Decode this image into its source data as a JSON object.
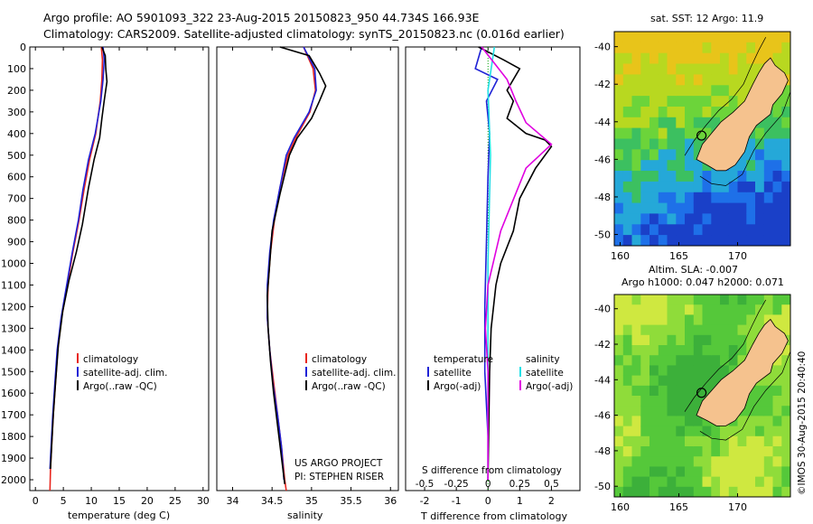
{
  "header": {
    "line1": "Argo profile: AO 5901093_322 23-Aug-2015 20150823_950 44.734S 166.93E",
    "line2": "Climatology: CARS2009. Satellite-adjusted climatology: synTS_20150823.nc (0.016d earlier)"
  },
  "watermark": "©IMOS 30-Aug-2015 20:40:40",
  "colors": {
    "climatology": "#e8261e",
    "satellite": "#1f22d6",
    "argo": "#000000",
    "sat_salinity": "#22e0e6",
    "argo_salinity": "#e000e0",
    "land": "#f5c28e"
  },
  "chart_data": [
    {
      "type": "line",
      "id": "temperature",
      "xlabel": "temperature (deg C)",
      "ylabel": "",
      "xlim": [
        -1,
        31
      ],
      "ylim": [
        0,
        2050
      ],
      "xticks": [
        0,
        5,
        10,
        15,
        20,
        25,
        30
      ],
      "yticks": [
        0,
        100,
        200,
        300,
        400,
        500,
        600,
        700,
        800,
        900,
        1000,
        1100,
        1200,
        1300,
        1400,
        1500,
        1600,
        1700,
        1800,
        1900,
        2000
      ],
      "legend": [
        "climatology",
        "satellite-adj. clim.",
        "Argo(..raw -QC)"
      ],
      "series": [
        {
          "name": "climatology",
          "color": "#e8261e",
          "points": [
            [
              11.8,
              0
            ],
            [
              12.0,
              60
            ],
            [
              11.9,
              150
            ],
            [
              11.6,
              250
            ],
            [
              10.8,
              400
            ],
            [
              9.7,
              520
            ],
            [
              8.7,
              660
            ],
            [
              7.8,
              800
            ],
            [
              6.7,
              950
            ],
            [
              5.7,
              1100
            ],
            [
              4.7,
              1250
            ],
            [
              4.0,
              1400
            ],
            [
              3.6,
              1550
            ],
            [
              3.2,
              1700
            ],
            [
              2.9,
              1850
            ],
            [
              2.7,
              1950
            ],
            [
              2.6,
              2050
            ]
          ]
        },
        {
          "name": "satellite-adj. clim.",
          "color": "#1f22d6",
          "points": [
            [
              12.1,
              0
            ],
            [
              12.3,
              60
            ],
            [
              12.1,
              150
            ],
            [
              11.7,
              250
            ],
            [
              10.7,
              400
            ],
            [
              9.5,
              520
            ],
            [
              8.5,
              660
            ],
            [
              7.7,
              800
            ],
            [
              6.6,
              950
            ],
            [
              5.6,
              1100
            ],
            [
              4.6,
              1250
            ],
            [
              3.9,
              1400
            ],
            [
              3.5,
              1550
            ],
            [
              3.1,
              1700
            ],
            [
              2.8,
              1850
            ],
            [
              2.6,
              1950
            ]
          ]
        },
        {
          "name": "Argo(..raw -QC)",
          "color": "#000000",
          "points": [
            [
              11.9,
              0
            ],
            [
              12.5,
              40
            ],
            [
              12.6,
              100
            ],
            [
              12.8,
              160
            ],
            [
              12.3,
              250
            ],
            [
              11.9,
              330
            ],
            [
              11.5,
              420
            ],
            [
              10.5,
              520
            ],
            [
              9.5,
              650
            ],
            [
              8.4,
              820
            ],
            [
              7.3,
              950
            ],
            [
              6.0,
              1080
            ],
            [
              4.9,
              1220
            ],
            [
              4.1,
              1380
            ],
            [
              3.6,
              1550
            ],
            [
              3.2,
              1700
            ],
            [
              2.9,
              1850
            ],
            [
              2.7,
              1950
            ]
          ]
        }
      ]
    },
    {
      "type": "line",
      "id": "salinity",
      "xlabel": "salinity",
      "ylabel": "",
      "xlim": [
        33.8,
        36.1
      ],
      "ylim": [
        0,
        2050
      ],
      "xticks": [
        34,
        34.5,
        35,
        35.5,
        36
      ],
      "legend": [
        "climatology",
        "satellite-adj. clim.",
        "Argo(..raw -QC)"
      ],
      "annotations": [
        "US ARGO PROJECT",
        "PI: STEPHEN RISER"
      ],
      "series": [
        {
          "name": "climatology",
          "color": "#e8261e",
          "points": [
            [
              34.9,
              0
            ],
            [
              35.02,
              100
            ],
            [
              35.05,
              200
            ],
            [
              34.98,
              300
            ],
            [
              34.8,
              420
            ],
            [
              34.7,
              500
            ],
            [
              34.6,
              650
            ],
            [
              34.53,
              800
            ],
            [
              34.48,
              950
            ],
            [
              34.45,
              1100
            ],
            [
              34.44,
              1250
            ],
            [
              34.47,
              1400
            ],
            [
              34.52,
              1550
            ],
            [
              34.57,
              1700
            ],
            [
              34.62,
              1850
            ],
            [
              34.66,
              2000
            ],
            [
              34.68,
              2050
            ]
          ]
        },
        {
          "name": "satellite-adj. clim.",
          "color": "#1f22d6",
          "points": [
            [
              34.9,
              0
            ],
            [
              35.04,
              100
            ],
            [
              35.06,
              200
            ],
            [
              34.97,
              300
            ],
            [
              34.78,
              420
            ],
            [
              34.68,
              500
            ],
            [
              34.6,
              650
            ],
            [
              34.52,
              800
            ],
            [
              34.47,
              950
            ],
            [
              34.44,
              1100
            ],
            [
              34.44,
              1250
            ],
            [
              34.47,
              1400
            ],
            [
              34.51,
              1550
            ],
            [
              34.57,
              1700
            ],
            [
              34.62,
              1850
            ],
            [
              34.65,
              2000
            ]
          ]
        },
        {
          "name": "Argo(..raw -QC)",
          "color": "#000000",
          "points": [
            [
              34.6,
              0
            ],
            [
              34.97,
              40
            ],
            [
              35.1,
              120
            ],
            [
              35.18,
              180
            ],
            [
              35.1,
              250
            ],
            [
              35.0,
              330
            ],
            [
              34.82,
              420
            ],
            [
              34.72,
              500
            ],
            [
              34.6,
              680
            ],
            [
              34.5,
              850
            ],
            [
              34.47,
              1000
            ],
            [
              34.44,
              1150
            ],
            [
              34.45,
              1300
            ],
            [
              34.48,
              1450
            ],
            [
              34.52,
              1600
            ],
            [
              34.57,
              1750
            ],
            [
              34.62,
              1900
            ],
            [
              34.66,
              2020
            ]
          ]
        }
      ]
    },
    {
      "type": "line",
      "id": "differences",
      "xlabel": "T difference from climatology",
      "xlabel_top": "S difference from climatology",
      "xlim": [
        -2.6,
        2.9
      ],
      "ylim": [
        0,
        2050
      ],
      "xticks": [
        -2,
        -1,
        0,
        1,
        2
      ],
      "xticks_top": [
        -0.5,
        -0.25,
        0,
        0.25,
        0.5
      ],
      "legend_headers": [
        "temperature",
        "salinity"
      ],
      "legend": [
        "satellite",
        "Argo(-adj)",
        "satellite",
        "Argo(-adj)"
      ],
      "series": [
        {
          "name": "satellite",
          "quantity": "temperature",
          "color": "#1f22d6",
          "points": [
            [
              -0.2,
              0
            ],
            [
              -0.4,
              100
            ],
            [
              0.3,
              150
            ],
            [
              -0.05,
              250
            ],
            [
              0.05,
              400
            ],
            [
              0.0,
              600
            ],
            [
              -0.05,
              900
            ],
            [
              -0.1,
              1200
            ],
            [
              -0.1,
              1500
            ],
            [
              0.0,
              1800
            ],
            [
              0.0,
              2000
            ]
          ]
        },
        {
          "name": "Argo(-adj)",
          "quantity": "temperature",
          "color": "#000000",
          "points": [
            [
              -0.3,
              0
            ],
            [
              0.5,
              60
            ],
            [
              1.0,
              100
            ],
            [
              0.6,
              200
            ],
            [
              0.8,
              250
            ],
            [
              0.6,
              330
            ],
            [
              1.2,
              400
            ],
            [
              1.8,
              430
            ],
            [
              2.0,
              460
            ],
            [
              1.5,
              560
            ],
            [
              1.0,
              700
            ],
            [
              0.8,
              850
            ],
            [
              0.4,
              1000
            ],
            [
              0.25,
              1100
            ],
            [
              0.1,
              1300
            ],
            [
              0.05,
              1500
            ],
            [
              0.0,
              2000
            ]
          ]
        },
        {
          "name": "satellite",
          "quantity": "salinity",
          "color": "#22e0e6",
          "points": [
            [
              0.05,
              0
            ],
            [
              0.0,
              200
            ],
            [
              0.02,
              500
            ],
            [
              0.0,
              1000
            ],
            [
              0.0,
              1500
            ],
            [
              0.0,
              2000
            ]
          ]
        },
        {
          "name": "Argo(-adj)",
          "quantity": "salinity",
          "color": "#e000e0",
          "points": [
            [
              -0.05,
              0
            ],
            [
              0.15,
              150
            ],
            [
              0.22,
              250
            ],
            [
              0.3,
              350
            ],
            [
              0.5,
              450
            ],
            [
              0.3,
              560
            ],
            [
              0.1,
              850
            ],
            [
              0.0,
              1100
            ],
            [
              -0.02,
              1300
            ],
            [
              0.0,
              1500
            ],
            [
              0.0,
              2000
            ]
          ]
        }
      ]
    },
    {
      "type": "heatmap",
      "id": "sst-map",
      "title": "sat. SST: 12 Argo: 11.9",
      "xticks": [
        160,
        165,
        170
      ],
      "yticks": [
        -40,
        -42,
        -44,
        -46,
        -48,
        -50
      ],
      "xlim": [
        159.5,
        174.5
      ],
      "ylim": [
        -50.6,
        -39.2
      ],
      "marker": {
        "lon": 166.93,
        "lat": -44.734
      }
    },
    {
      "type": "heatmap",
      "id": "sla-map",
      "title": "Altim. SLA: -0.007",
      "subtitle": "Argo h1000: 0.047 h2000: 0.071",
      "xticks": [
        160,
        165,
        170
      ],
      "yticks": [
        -40,
        -42,
        -44,
        -46,
        -48,
        -50
      ],
      "xlim": [
        159.5,
        174.5
      ],
      "ylim": [
        -50.6,
        -39.2
      ],
      "marker": {
        "lon": 166.93,
        "lat": -44.734
      }
    }
  ]
}
